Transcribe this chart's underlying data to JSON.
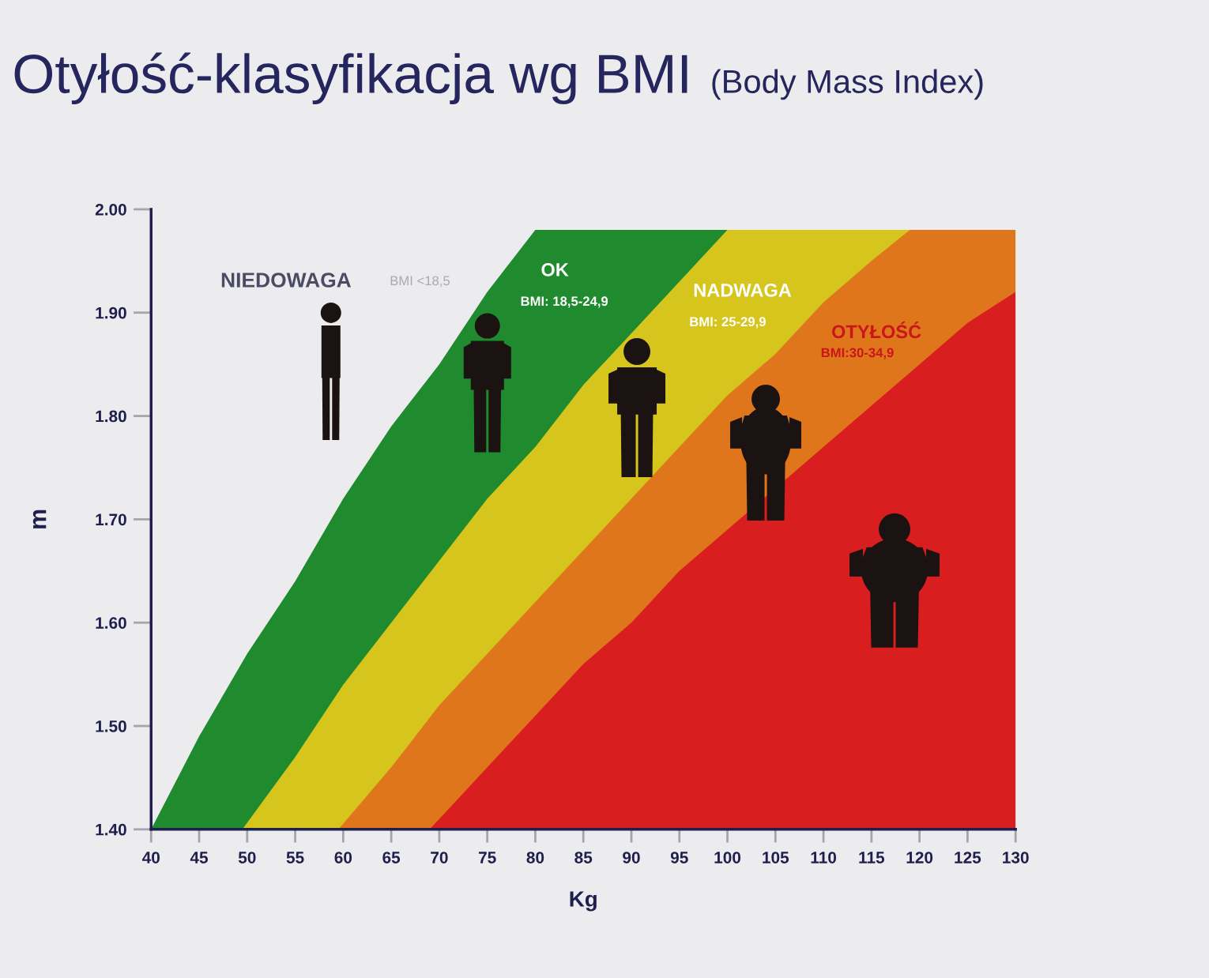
{
  "chart_data": {
    "type": "area",
    "title": "Otyłość-klasyfikacja wg BMI",
    "subtitle": "(Body Mass Index)",
    "xlabel": "Kg",
    "ylabel": "m",
    "xlim": [
      40,
      130
    ],
    "ylim": [
      1.4,
      2.0
    ],
    "xticks": [
      40,
      45,
      50,
      55,
      60,
      65,
      70,
      75,
      80,
      85,
      90,
      95,
      100,
      105,
      110,
      115,
      120,
      125,
      130
    ],
    "yticks": [
      {
        "value": 1.4,
        "label": "1.40"
      },
      {
        "value": 1.5,
        "label": "1.50"
      },
      {
        "value": 1.6,
        "label": "1.60"
      },
      {
        "value": 1.7,
        "label": "1.70"
      },
      {
        "value": 1.8,
        "label": "1.80"
      },
      {
        "value": 1.9,
        "label": "1.90"
      },
      {
        "value": 2.0,
        "label": "2.00"
      }
    ],
    "series": [
      {
        "color": "#1f8a2e",
        "x": [
          40,
          45,
          50,
          55,
          60,
          65,
          70,
          75,
          80,
          130
        ],
        "values": [
          1.4,
          1.49,
          1.57,
          1.64,
          1.72,
          1.79,
          1.85,
          1.92,
          1.98,
          1.98
        ]
      },
      {
        "color": "#d6c51c",
        "x": [
          49.5,
          55,
          60,
          65,
          70,
          75,
          80,
          85,
          90,
          95,
          100,
          130
        ],
        "values": [
          1.4,
          1.47,
          1.54,
          1.6,
          1.66,
          1.72,
          1.77,
          1.83,
          1.88,
          1.93,
          1.98,
          1.98
        ]
      },
      {
        "color": "#e0761c",
        "x": [
          59.5,
          65,
          70,
          75,
          80,
          85,
          90,
          95,
          100,
          105,
          110,
          115,
          119,
          130
        ],
        "values": [
          1.4,
          1.46,
          1.52,
          1.57,
          1.62,
          1.67,
          1.72,
          1.77,
          1.82,
          1.86,
          1.91,
          1.95,
          1.98,
          1.98
        ]
      },
      {
        "color": "#d81e1e",
        "x": [
          69,
          75,
          80,
          85,
          90,
          95,
          100,
          110,
          115,
          120,
          125,
          130
        ],
        "values": [
          1.4,
          1.46,
          1.51,
          1.56,
          1.6,
          1.65,
          1.69,
          1.77,
          1.81,
          1.85,
          1.89,
          1.92
        ]
      }
    ],
    "annotations": [
      "NIEDOWAGA",
      "BMI <18,5",
      "OK",
      "BMI: 18,5-24,9",
      "NADWAGA",
      "BMI: 25-29,9",
      "OTYŁOŚĆ",
      "BMI:30-34,9"
    ]
  }
}
